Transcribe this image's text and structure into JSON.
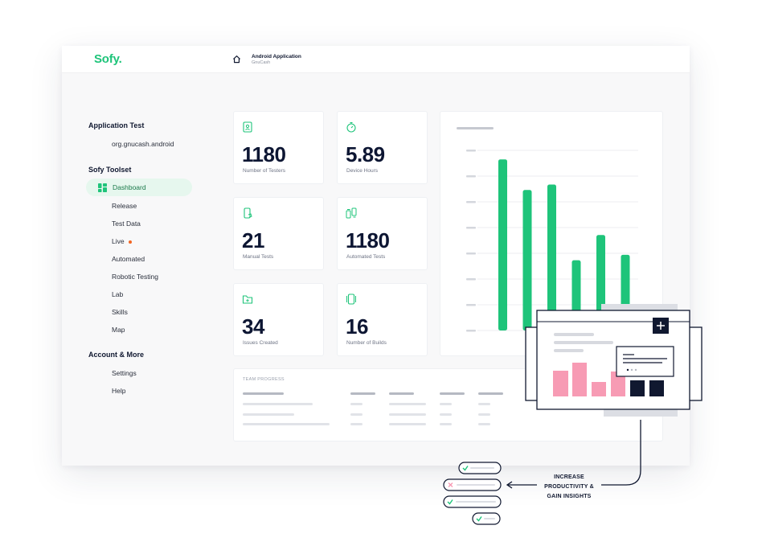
{
  "header": {
    "logo": "Sofy.",
    "breadcrumb_title": "Android Application",
    "breadcrumb_sub": "GnuCash"
  },
  "sidebar": {
    "application_test_heading": "Application Test",
    "app_package": "org.gnucash.android",
    "toolset_heading": "Sofy Toolset",
    "items": [
      "Dashboard",
      "Release",
      "Test Data",
      "Live",
      "Automated",
      "Robotic Testing",
      "Lab",
      "Skills",
      "Map"
    ],
    "account_heading": "Account & More",
    "account_items": [
      "Settings",
      "Help"
    ]
  },
  "stats": [
    {
      "value": "1180",
      "label": "Number of Testers",
      "icon": "tablet-user-icon"
    },
    {
      "value": "5.89",
      "label": "Device Hours",
      "icon": "stopwatch-icon"
    },
    {
      "value": "21",
      "label": "Manual Tests",
      "icon": "phone-hand-icon"
    },
    {
      "value": "1180",
      "label": "Automated Tests",
      "icon": "devices-sync-icon"
    },
    {
      "value": "34",
      "label": "Issues Created",
      "icon": "folder-plus-icon"
    },
    {
      "value": "16",
      "label": "Number of Builds",
      "icon": "phones-stack-icon"
    }
  ],
  "team_progress": {
    "title": "TEAM PROGRESS"
  },
  "callout": {
    "text_line1": "INCREASE",
    "text_line2": "PRODUCTIVITY &",
    "text_line3": "GAIN INSIGHTS"
  },
  "colors": {
    "brand_green": "#1ec47a",
    "accent_pink": "#f79bb4",
    "navy": "#101830",
    "live_orange": "#f26522"
  },
  "chart_data": {
    "type": "bar",
    "title": "",
    "categories": [
      "",
      "",
      "",
      "",
      "",
      ""
    ],
    "values": [
      95,
      78,
      81,
      39,
      53,
      42
    ],
    "ylim": [
      0,
      100
    ],
    "grid": true
  }
}
